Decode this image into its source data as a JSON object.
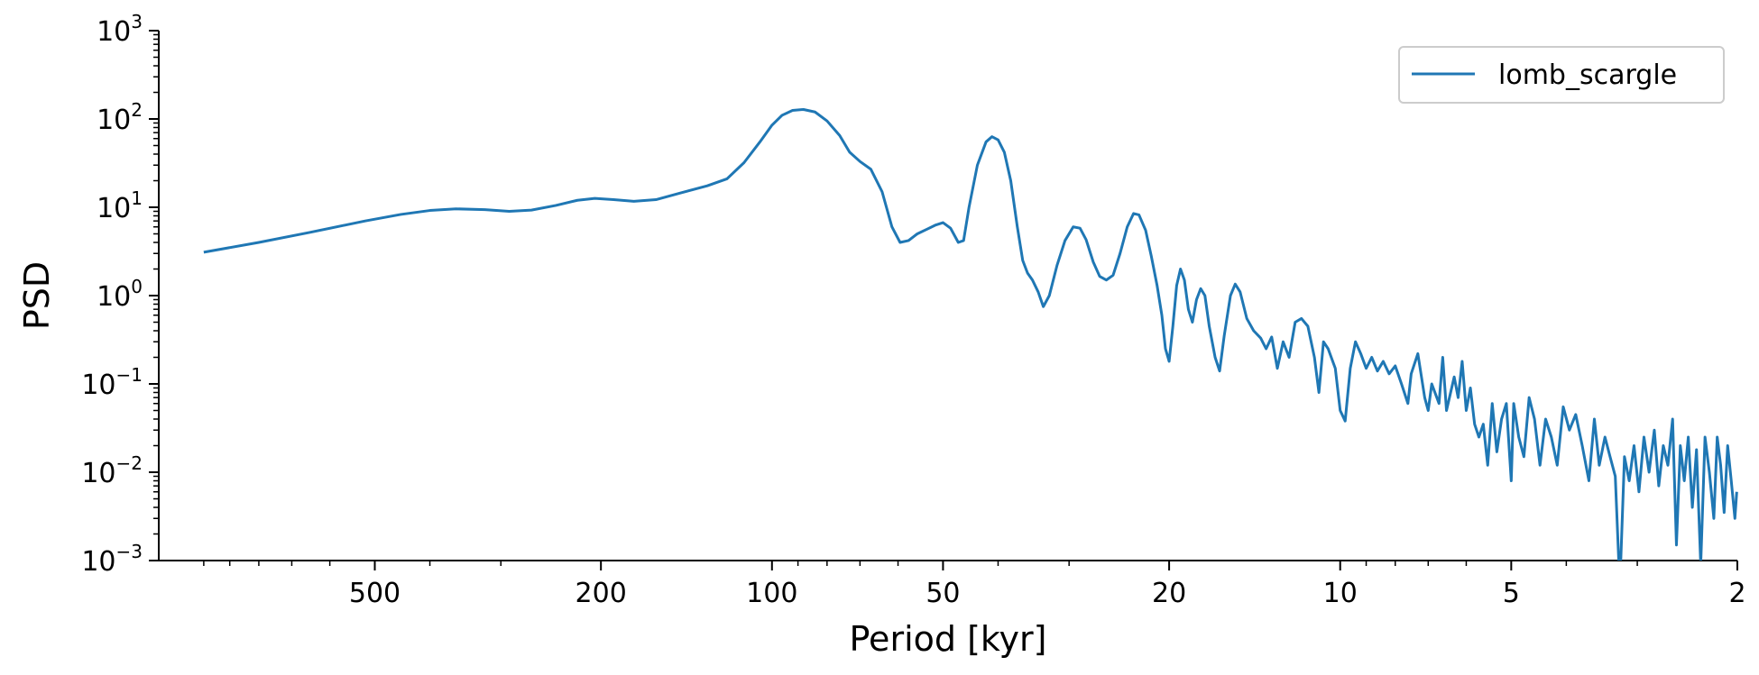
{
  "chart_data": {
    "type": "line",
    "xlabel": "Period [kyr]",
    "ylabel": "PSD",
    "x_scale": "log",
    "y_scale": "log",
    "x_reversed": true,
    "xlim": [
      1200,
      2
    ],
    "ylim": [
      0.001,
      1000
    ],
    "x_ticks": [
      {
        "value": 500,
        "label": "500"
      },
      {
        "value": 200,
        "label": "200"
      },
      {
        "value": 100,
        "label": "100"
      },
      {
        "value": 50,
        "label": "50"
      },
      {
        "value": 20,
        "label": "20"
      },
      {
        "value": 10,
        "label": "10"
      },
      {
        "value": 5,
        "label": "5"
      },
      {
        "value": 2,
        "label": "2"
      }
    ],
    "y_ticks": [
      {
        "value": 1000,
        "base": "10",
        "exp": "3"
      },
      {
        "value": 100,
        "base": "10",
        "exp": "2"
      },
      {
        "value": 10,
        "base": "10",
        "exp": "1"
      },
      {
        "value": 1,
        "base": "10",
        "exp": "0"
      },
      {
        "value": 0.1,
        "base": "10",
        "exp": "−1"
      },
      {
        "value": 0.01,
        "base": "10",
        "exp": "−2"
      },
      {
        "value": 0.001,
        "base": "10",
        "exp": "−3"
      }
    ],
    "legend": {
      "position": "top-right",
      "entries": [
        "lomb_scargle"
      ]
    },
    "grid": false,
    "series": [
      {
        "name": "lomb_scargle",
        "color": "#1f77b4",
        "points": [
          [
            1000,
            3.1
          ],
          [
            800,
            4.0
          ],
          [
            650,
            5.2
          ],
          [
            520,
            7.0
          ],
          [
            450,
            8.3
          ],
          [
            400,
            9.2
          ],
          [
            360,
            9.6
          ],
          [
            320,
            9.4
          ],
          [
            290,
            9.0
          ],
          [
            265,
            9.3
          ],
          [
            240,
            10.5
          ],
          [
            220,
            12.0
          ],
          [
            205,
            12.6
          ],
          [
            190,
            12.2
          ],
          [
            175,
            11.7
          ],
          [
            160,
            12.2
          ],
          [
            145,
            14.5
          ],
          [
            130,
            17.5
          ],
          [
            120,
            21.0
          ],
          [
            112,
            32.0
          ],
          [
            105,
            55.0
          ],
          [
            100,
            85.0
          ],
          [
            96,
            110.0
          ],
          [
            92,
            125.0
          ],
          [
            88,
            128.0
          ],
          [
            84,
            120.0
          ],
          [
            80,
            95.0
          ],
          [
            76,
            65.0
          ],
          [
            73,
            42.0
          ],
          [
            70,
            33.0
          ],
          [
            67,
            27.0
          ],
          [
            64,
            15.0
          ],
          [
            61.5,
            6.0
          ],
          [
            59.5,
            4.0
          ],
          [
            57.5,
            4.2
          ],
          [
            55.5,
            5.0
          ],
          [
            53.5,
            5.6
          ],
          [
            51.5,
            6.3
          ],
          [
            50,
            6.7
          ],
          [
            48.5,
            5.8
          ],
          [
            47,
            4.0
          ],
          [
            46,
            4.2
          ],
          [
            45,
            10.0
          ],
          [
            43.5,
            30.0
          ],
          [
            42,
            55.0
          ],
          [
            41,
            63.0
          ],
          [
            40,
            58.0
          ],
          [
            39,
            42.0
          ],
          [
            38,
            20.0
          ],
          [
            37,
            6.0
          ],
          [
            36.2,
            2.5
          ],
          [
            35.5,
            1.8
          ],
          [
            34.8,
            1.5
          ],
          [
            34,
            1.1
          ],
          [
            33.3,
            0.75
          ],
          [
            32.5,
            1.0
          ],
          [
            31.5,
            2.2
          ],
          [
            30.5,
            4.2
          ],
          [
            29.5,
            6.0
          ],
          [
            28.7,
            5.8
          ],
          [
            28,
            4.3
          ],
          [
            27.2,
            2.4
          ],
          [
            26.5,
            1.65
          ],
          [
            25.8,
            1.5
          ],
          [
            25.1,
            1.7
          ],
          [
            24.4,
            3.0
          ],
          [
            23.7,
            6.0
          ],
          [
            23.1,
            8.5
          ],
          [
            22.6,
            8.2
          ],
          [
            22,
            5.5
          ],
          [
            21.5,
            2.8
          ],
          [
            21,
            1.3
          ],
          [
            20.6,
            0.6
          ],
          [
            20.3,
            0.25
          ],
          [
            20,
            0.18
          ],
          [
            19.7,
            0.45
          ],
          [
            19.4,
            1.3
          ],
          [
            19.1,
            2.0
          ],
          [
            18.8,
            1.5
          ],
          [
            18.5,
            0.7
          ],
          [
            18.2,
            0.5
          ],
          [
            17.9,
            0.9
          ],
          [
            17.6,
            1.2
          ],
          [
            17.3,
            1.0
          ],
          [
            17,
            0.45
          ],
          [
            16.6,
            0.2
          ],
          [
            16.3,
            0.14
          ],
          [
            16,
            0.35
          ],
          [
            15.6,
            1.0
          ],
          [
            15.3,
            1.35
          ],
          [
            15,
            1.1
          ],
          [
            14.6,
            0.55
          ],
          [
            14.2,
            0.4
          ],
          [
            13.8,
            0.33
          ],
          [
            13.5,
            0.25
          ],
          [
            13.2,
            0.34
          ],
          [
            12.9,
            0.15
          ],
          [
            12.6,
            0.3
          ],
          [
            12.3,
            0.2
          ],
          [
            12,
            0.5
          ],
          [
            11.7,
            0.55
          ],
          [
            11.4,
            0.45
          ],
          [
            11.1,
            0.2
          ],
          [
            10.9,
            0.08
          ],
          [
            10.7,
            0.3
          ],
          [
            10.5,
            0.25
          ],
          [
            10.2,
            0.15
          ],
          [
            10,
            0.05
          ],
          [
            9.8,
            0.038
          ],
          [
            9.6,
            0.15
          ],
          [
            9.4,
            0.3
          ],
          [
            9.2,
            0.22
          ],
          [
            9,
            0.15
          ],
          [
            8.8,
            0.2
          ],
          [
            8.6,
            0.14
          ],
          [
            8.4,
            0.18
          ],
          [
            8.2,
            0.13
          ],
          [
            8,
            0.16
          ],
          [
            7.8,
            0.1
          ],
          [
            7.6,
            0.06
          ],
          [
            7.5,
            0.13
          ],
          [
            7.3,
            0.22
          ],
          [
            7.1,
            0.07
          ],
          [
            7,
            0.05
          ],
          [
            6.9,
            0.1
          ],
          [
            6.7,
            0.06
          ],
          [
            6.6,
            0.2
          ],
          [
            6.5,
            0.05
          ],
          [
            6.3,
            0.12
          ],
          [
            6.2,
            0.07
          ],
          [
            6.1,
            0.18
          ],
          [
            6,
            0.05
          ],
          [
            5.9,
            0.09
          ],
          [
            5.8,
            0.035
          ],
          [
            5.7,
            0.025
          ],
          [
            5.6,
            0.035
          ],
          [
            5.5,
            0.012
          ],
          [
            5.4,
            0.06
          ],
          [
            5.3,
            0.017
          ],
          [
            5.2,
            0.04
          ],
          [
            5.1,
            0.06
          ],
          [
            5,
            0.008
          ],
          [
            4.95,
            0.06
          ],
          [
            4.85,
            0.025
          ],
          [
            4.75,
            0.015
          ],
          [
            4.65,
            0.07
          ],
          [
            4.55,
            0.04
          ],
          [
            4.45,
            0.012
          ],
          [
            4.35,
            0.04
          ],
          [
            4.25,
            0.025
          ],
          [
            4.15,
            0.012
          ],
          [
            4.05,
            0.055
          ],
          [
            3.95,
            0.03
          ],
          [
            3.85,
            0.045
          ],
          [
            3.75,
            0.02
          ],
          [
            3.65,
            0.008
          ],
          [
            3.57,
            0.04
          ],
          [
            3.5,
            0.012
          ],
          [
            3.42,
            0.025
          ],
          [
            3.35,
            0.015
          ],
          [
            3.28,
            0.009
          ],
          [
            3.22,
            0.0005
          ],
          [
            3.16,
            0.015
          ],
          [
            3.1,
            0.008
          ],
          [
            3.04,
            0.02
          ],
          [
            2.98,
            0.006
          ],
          [
            2.92,
            0.025
          ],
          [
            2.86,
            0.01
          ],
          [
            2.8,
            0.03
          ],
          [
            2.75,
            0.007
          ],
          [
            2.7,
            0.02
          ],
          [
            2.65,
            0.012
          ],
          [
            2.6,
            0.04
          ],
          [
            2.56,
            0.0015
          ],
          [
            2.52,
            0.02
          ],
          [
            2.48,
            0.008
          ],
          [
            2.44,
            0.025
          ],
          [
            2.4,
            0.004
          ],
          [
            2.36,
            0.018
          ],
          [
            2.32,
            0.0009
          ],
          [
            2.28,
            0.025
          ],
          [
            2.24,
            0.01
          ],
          [
            2.2,
            0.003
          ],
          [
            2.17,
            0.025
          ],
          [
            2.14,
            0.012
          ],
          [
            2.11,
            0.0035
          ],
          [
            2.08,
            0.02
          ],
          [
            2.05,
            0.008
          ],
          [
            2.02,
            0.003
          ],
          [
            2.005,
            0.006
          ]
        ]
      }
    ]
  }
}
